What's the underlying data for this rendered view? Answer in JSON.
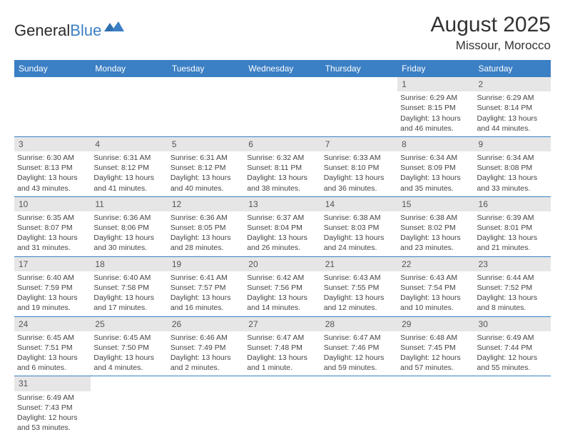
{
  "logo": {
    "text1": "General",
    "text2": "Blue"
  },
  "title": "August 2025",
  "location": "Missour, Morocco",
  "colors": {
    "header_bg": "#3b7fc4",
    "header_text": "#ffffff",
    "daynum_bg": "#e6e6e6",
    "row_border": "#3b7fc4",
    "text": "#333333"
  },
  "weekdays": [
    "Sunday",
    "Monday",
    "Tuesday",
    "Wednesday",
    "Thursday",
    "Friday",
    "Saturday"
  ],
  "days": {
    "1": {
      "sunrise": "6:29 AM",
      "sunset": "8:15 PM",
      "daylight": "13 hours and 46 minutes."
    },
    "2": {
      "sunrise": "6:29 AM",
      "sunset": "8:14 PM",
      "daylight": "13 hours and 44 minutes."
    },
    "3": {
      "sunrise": "6:30 AM",
      "sunset": "8:13 PM",
      "daylight": "13 hours and 43 minutes."
    },
    "4": {
      "sunrise": "6:31 AM",
      "sunset": "8:12 PM",
      "daylight": "13 hours and 41 minutes."
    },
    "5": {
      "sunrise": "6:31 AM",
      "sunset": "8:12 PM",
      "daylight": "13 hours and 40 minutes."
    },
    "6": {
      "sunrise": "6:32 AM",
      "sunset": "8:11 PM",
      "daylight": "13 hours and 38 minutes."
    },
    "7": {
      "sunrise": "6:33 AM",
      "sunset": "8:10 PM",
      "daylight": "13 hours and 36 minutes."
    },
    "8": {
      "sunrise": "6:34 AM",
      "sunset": "8:09 PM",
      "daylight": "13 hours and 35 minutes."
    },
    "9": {
      "sunrise": "6:34 AM",
      "sunset": "8:08 PM",
      "daylight": "13 hours and 33 minutes."
    },
    "10": {
      "sunrise": "6:35 AM",
      "sunset": "8:07 PM",
      "daylight": "13 hours and 31 minutes."
    },
    "11": {
      "sunrise": "6:36 AM",
      "sunset": "8:06 PM",
      "daylight": "13 hours and 30 minutes."
    },
    "12": {
      "sunrise": "6:36 AM",
      "sunset": "8:05 PM",
      "daylight": "13 hours and 28 minutes."
    },
    "13": {
      "sunrise": "6:37 AM",
      "sunset": "8:04 PM",
      "daylight": "13 hours and 26 minutes."
    },
    "14": {
      "sunrise": "6:38 AM",
      "sunset": "8:03 PM",
      "daylight": "13 hours and 24 minutes."
    },
    "15": {
      "sunrise": "6:38 AM",
      "sunset": "8:02 PM",
      "daylight": "13 hours and 23 minutes."
    },
    "16": {
      "sunrise": "6:39 AM",
      "sunset": "8:01 PM",
      "daylight": "13 hours and 21 minutes."
    },
    "17": {
      "sunrise": "6:40 AM",
      "sunset": "7:59 PM",
      "daylight": "13 hours and 19 minutes."
    },
    "18": {
      "sunrise": "6:40 AM",
      "sunset": "7:58 PM",
      "daylight": "13 hours and 17 minutes."
    },
    "19": {
      "sunrise": "6:41 AM",
      "sunset": "7:57 PM",
      "daylight": "13 hours and 16 minutes."
    },
    "20": {
      "sunrise": "6:42 AM",
      "sunset": "7:56 PM",
      "daylight": "13 hours and 14 minutes."
    },
    "21": {
      "sunrise": "6:43 AM",
      "sunset": "7:55 PM",
      "daylight": "13 hours and 12 minutes."
    },
    "22": {
      "sunrise": "6:43 AM",
      "sunset": "7:54 PM",
      "daylight": "13 hours and 10 minutes."
    },
    "23": {
      "sunrise": "6:44 AM",
      "sunset": "7:52 PM",
      "daylight": "13 hours and 8 minutes."
    },
    "24": {
      "sunrise": "6:45 AM",
      "sunset": "7:51 PM",
      "daylight": "13 hours and 6 minutes."
    },
    "25": {
      "sunrise": "6:45 AM",
      "sunset": "7:50 PM",
      "daylight": "13 hours and 4 minutes."
    },
    "26": {
      "sunrise": "6:46 AM",
      "sunset": "7:49 PM",
      "daylight": "13 hours and 2 minutes."
    },
    "27": {
      "sunrise": "6:47 AM",
      "sunset": "7:48 PM",
      "daylight": "13 hours and 1 minute."
    },
    "28": {
      "sunrise": "6:47 AM",
      "sunset": "7:46 PM",
      "daylight": "12 hours and 59 minutes."
    },
    "29": {
      "sunrise": "6:48 AM",
      "sunset": "7:45 PM",
      "daylight": "12 hours and 57 minutes."
    },
    "30": {
      "sunrise": "6:49 AM",
      "sunset": "7:44 PM",
      "daylight": "12 hours and 55 minutes."
    },
    "31": {
      "sunrise": "6:49 AM",
      "sunset": "7:43 PM",
      "daylight": "12 hours and 53 minutes."
    }
  },
  "grid": [
    [
      null,
      null,
      null,
      null,
      null,
      "1",
      "2"
    ],
    [
      "3",
      "4",
      "5",
      "6",
      "7",
      "8",
      "9"
    ],
    [
      "10",
      "11",
      "12",
      "13",
      "14",
      "15",
      "16"
    ],
    [
      "17",
      "18",
      "19",
      "20",
      "21",
      "22",
      "23"
    ],
    [
      "24",
      "25",
      "26",
      "27",
      "28",
      "29",
      "30"
    ],
    [
      "31",
      null,
      null,
      null,
      null,
      null,
      null
    ]
  ],
  "labels": {
    "sunrise": "Sunrise: ",
    "sunset": "Sunset: ",
    "daylight": "Daylight: "
  }
}
